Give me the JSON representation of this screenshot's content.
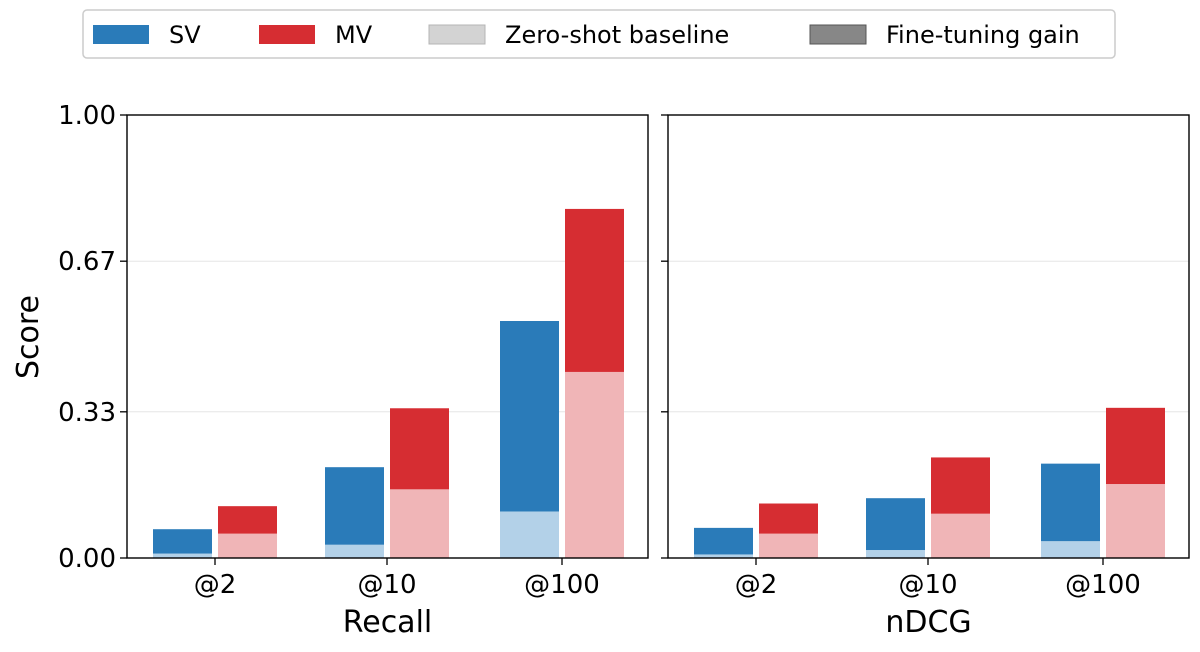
{
  "chart_data": [
    {
      "type": "bar",
      "panel": "left",
      "categories": [
        "@2",
        "@10",
        "@100"
      ],
      "xlabel": "Recall",
      "ylabel": "Score",
      "ylim": [
        0,
        1.0
      ],
      "yticks": [
        "0.00",
        "0.33",
        "0.67",
        "1.00"
      ],
      "grid": "horizontal",
      "series": [
        {
          "name": "SV",
          "zero_shot": [
            0.01,
            0.03,
            0.105
          ],
          "fine_tuned": [
            0.065,
            0.205,
            0.535
          ]
        },
        {
          "name": "MV",
          "zero_shot": [
            0.055,
            0.155,
            0.42
          ],
          "fine_tuned": [
            0.117,
            0.338,
            0.788
          ]
        }
      ]
    },
    {
      "type": "bar",
      "panel": "right",
      "categories": [
        "@2",
        "@10",
        "@100"
      ],
      "xlabel": "nDCG",
      "ylabel": "",
      "ylim": [
        0,
        1.0
      ],
      "grid": "horizontal",
      "series": [
        {
          "name": "SV",
          "zero_shot": [
            0.008,
            0.018,
            0.038
          ],
          "fine_tuned": [
            0.068,
            0.135,
            0.213
          ]
        },
        {
          "name": "MV",
          "zero_shot": [
            0.055,
            0.1,
            0.167
          ],
          "fine_tuned": [
            0.123,
            0.227,
            0.339
          ]
        }
      ]
    }
  ],
  "legend": {
    "placement": "top",
    "items": [
      {
        "label": "SV",
        "color": "#2a7bb9"
      },
      {
        "label": "MV",
        "color": "#d62d32"
      },
      {
        "label": "Zero-shot baseline",
        "color": "#d3d3d3"
      },
      {
        "label": "Fine-tuning gain",
        "color": "#878787"
      }
    ]
  },
  "colors": {
    "sv_gain": "#2a7bb9",
    "sv_base": "#b3d1e8",
    "mv_gain": "#d62d32",
    "mv_base": "#f0b5b7"
  }
}
